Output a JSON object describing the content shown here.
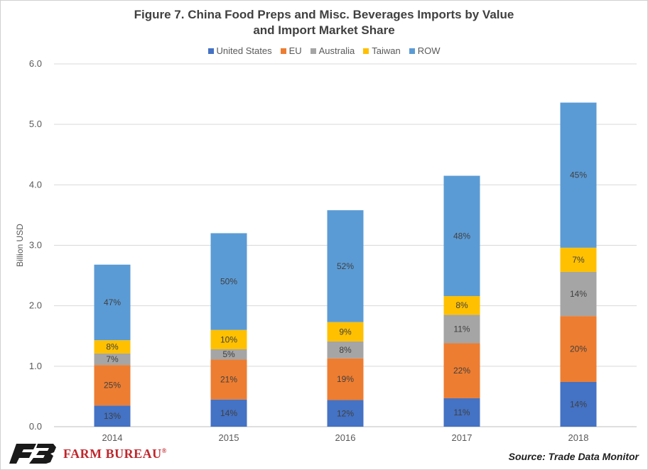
{
  "title_line1": "Figure 7. China Food Preps and Misc. Beverages Imports by Value",
  "title_line2": "and Import Market Share",
  "source": "Source: Trade Data Monitor",
  "logo": {
    "text": "FARM BUREAU",
    "mark": "®",
    "icon": "fb-logo-icon"
  },
  "chart_data": {
    "type": "bar",
    "stacked": true,
    "title": "Figure 7. China Food Preps and Misc. Beverages Imports by Value and Import Market Share",
    "xlabel": "",
    "ylabel": "Billion USD",
    "ylim": [
      0,
      6
    ],
    "yticks": [
      "0.0",
      "1.0",
      "2.0",
      "3.0",
      "4.0",
      "5.0",
      "6.0"
    ],
    "grid": true,
    "legend_position": "top",
    "categories": [
      "2014",
      "2015",
      "2016",
      "2017",
      "2018"
    ],
    "series": [
      {
        "name": "United States",
        "color": "#4472c4",
        "values": [
          0.35,
          0.45,
          0.44,
          0.47,
          0.74
        ],
        "labels": [
          "13%",
          "14%",
          "12%",
          "11%",
          "14%"
        ]
      },
      {
        "name": "EU",
        "color": "#ed7d31",
        "values": [
          0.67,
          0.66,
          0.69,
          0.91,
          1.09
        ],
        "labels": [
          "25%",
          "21%",
          "19%",
          "22%",
          "20%"
        ]
      },
      {
        "name": "Australia",
        "color": "#a5a5a5",
        "values": [
          0.19,
          0.17,
          0.28,
          0.47,
          0.73
        ],
        "labels": [
          "7%",
          "5%",
          "8%",
          "11%",
          "14%"
        ]
      },
      {
        "name": "Taiwan",
        "color": "#ffc000",
        "values": [
          0.22,
          0.32,
          0.32,
          0.31,
          0.4
        ],
        "labels": [
          "8%",
          "10%",
          "9%",
          "8%",
          "7%"
        ]
      },
      {
        "name": "ROW",
        "color": "#5b9bd5",
        "values": [
          1.25,
          1.6,
          1.85,
          1.99,
          2.4
        ],
        "labels": [
          "47%",
          "50%",
          "52%",
          "48%",
          "45%"
        ]
      }
    ]
  }
}
